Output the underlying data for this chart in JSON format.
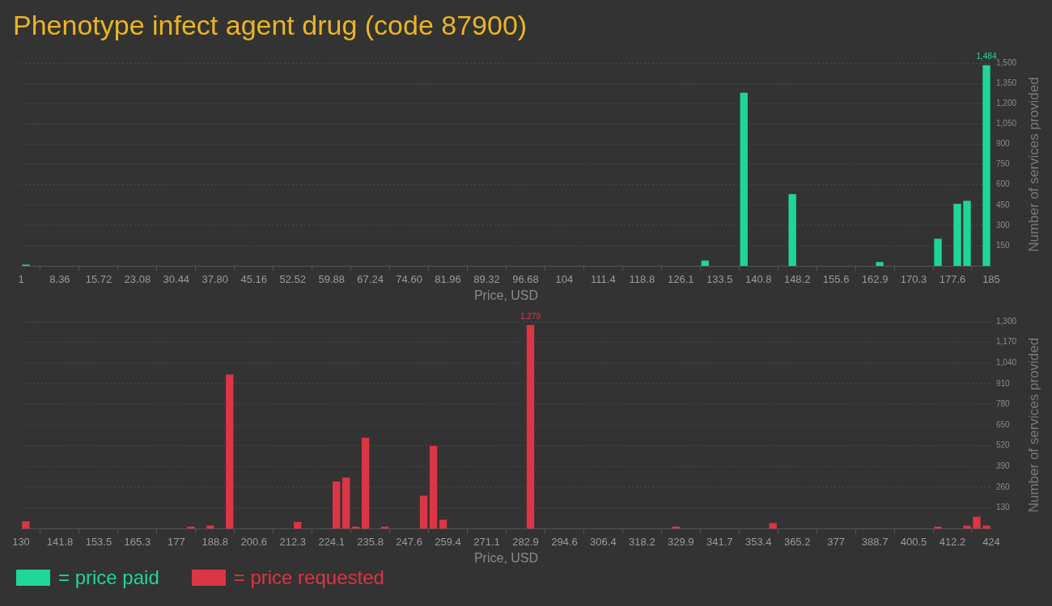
{
  "chart_data": [
    {
      "type": "histogram",
      "title": "Phenotype infect agent drug (code 87900)",
      "xlabel": "Price, USD",
      "ylabel": "Number of services provided",
      "bins": [
        1,
        2.84,
        4.68,
        6.52,
        8.36,
        10.2,
        12.04,
        13.88,
        15.72,
        17.56,
        19.4,
        21.24,
        23.08,
        24.92,
        26.76,
        28.6,
        30.44,
        32.28,
        34.12,
        35.96,
        37.8,
        39.64,
        41.48,
        43.32,
        45.16,
        47,
        48.84,
        50.68,
        52.52,
        54.36,
        56.2,
        58.04,
        59.88,
        61.72,
        63.56,
        65.4,
        67.24,
        69.08,
        70.92,
        72.76,
        74.6,
        76.44,
        78.28,
        80.12,
        81.96,
        83.8,
        85.64,
        87.48,
        89.32,
        91.16,
        93,
        94.84,
        96.68,
        98.52,
        100.36,
        102.2,
        104.04,
        105.88,
        107.72,
        109.56,
        111.4,
        113.24,
        115.08,
        116.92,
        118.76,
        120.6,
        122.44,
        124.28,
        126.12,
        127.96,
        129.8,
        131.64,
        133.48,
        135.32,
        137.16,
        139,
        140.84,
        142.68,
        144.52,
        146.36,
        148.2,
        150.04,
        151.88,
        153.72,
        155.56,
        157.4,
        159.24,
        161.08,
        162.92,
        164.76,
        166.6,
        168.44,
        170.28,
        172.12,
        173.96,
        175.8,
        177.64,
        179.48,
        181.32,
        183.16,
        185
      ],
      "series": [
        {
          "name": "= price paid",
          "color": "#1fd69a",
          "values": [
            10,
            0,
            0,
            0,
            0,
            0,
            0,
            0,
            0,
            0,
            0,
            0,
            0,
            0,
            0,
            0,
            0,
            0,
            0,
            0,
            0,
            0,
            0,
            0,
            0,
            0,
            0,
            0,
            0,
            0,
            0,
            0,
            0,
            0,
            0,
            0,
            0,
            0,
            0,
            0,
            0,
            0,
            0,
            0,
            0,
            0,
            0,
            0,
            0,
            0,
            0,
            0,
            0,
            0,
            0,
            0,
            0,
            0,
            0,
            0,
            0,
            0,
            0,
            0,
            0,
            0,
            0,
            0,
            0,
            0,
            40,
            0,
            0,
            0,
            1280,
            0,
            0,
            0,
            0,
            531,
            0,
            0,
            0,
            0,
            0,
            0,
            0,
            0,
            30,
            0,
            0,
            0,
            0,
            0,
            201,
            0,
            459,
            482,
            0,
            1484
          ]
        }
      ],
      "annotations": [
        {
          "text": "1,484",
          "x": 184.08,
          "y": 1484
        }
      ],
      "xlim": [
        1,
        185
      ],
      "xticks": [
        1,
        {
          "value": 8.36,
          "label": "8.36"
        },
        {
          "value": 15.72,
          "label": "15.72"
        },
        {
          "value": 23.08,
          "label": "23.08"
        },
        {
          "value": 30.44,
          "label": "30.44"
        },
        {
          "value": 37.8,
          "label": "37.80"
        },
        {
          "value": 45.16,
          "label": "45.16"
        },
        {
          "value": 52.52,
          "label": "52.52"
        },
        {
          "value": 59.88,
          "label": "59.88"
        },
        {
          "value": 67.24,
          "label": "67.24"
        },
        {
          "value": 74.6,
          "label": "74.60"
        },
        {
          "value": 81.96,
          "label": "81.96"
        },
        {
          "value": 89.32,
          "label": "89.32"
        },
        {
          "value": 96.68,
          "label": "96.68"
        },
        {
          "value": 104.04,
          "label": "104"
        },
        {
          "value": 111.4,
          "label": "111.4"
        },
        {
          "value": 118.76,
          "label": "118.8"
        },
        {
          "value": 126.12,
          "label": "126.1"
        },
        {
          "value": 133.48,
          "label": "133.5"
        },
        {
          "value": 140.84,
          "label": "140.8"
        },
        {
          "value": 148.2,
          "label": "148.2"
        },
        {
          "value": 155.56,
          "label": "155.6"
        },
        {
          "value": 162.92,
          "label": "162.9"
        },
        {
          "value": 170.28,
          "label": "170.3"
        },
        {
          "value": 177.64,
          "label": "177.6"
        },
        185
      ],
      "ylim": [
        0,
        1500
      ],
      "yticks": [
        150,
        300,
        450,
        600,
        750,
        900,
        {
          "value": 1050,
          "label": "1,050"
        },
        {
          "value": 1200,
          "label": "1,200"
        },
        {
          "value": 1350,
          "label": "1,350"
        },
        {
          "value": 1500,
          "label": "1,500"
        }
      ],
      "grid": "y",
      "legend": "bottom"
    },
    {
      "type": "histogram",
      "xlabel": "Price, USD",
      "ylabel": "Number of services provided",
      "bins": [
        130,
        132.94,
        135.88,
        138.82,
        141.76,
        144.7,
        147.64,
        150.58,
        153.52,
        156.46,
        159.4,
        162.34,
        165.28,
        168.22,
        171.16,
        174.1,
        177.04,
        179.98,
        182.92,
        185.86,
        188.8,
        191.74,
        194.68,
        197.62,
        200.56,
        203.5,
        206.44,
        209.38,
        212.32,
        215.26,
        218.2,
        221.14,
        224.08,
        227.02,
        229.96,
        232.9,
        235.84,
        238.78,
        241.72,
        244.66,
        247.6,
        250.54,
        253.48,
        256.42,
        259.36,
        262.3,
        265.24,
        268.18,
        271.12,
        274.06,
        277,
        279.94,
        282.88,
        285.82,
        288.76,
        291.7,
        294.64,
        297.58,
        300.52,
        303.46,
        306.4,
        309.34,
        312.28,
        315.22,
        318.16,
        321.1,
        324.04,
        326.98,
        329.92,
        332.86,
        335.8,
        338.74,
        341.68,
        344.62,
        347.56,
        350.5,
        353.44,
        356.38,
        359.32,
        362.26,
        365.2,
        368.14,
        371.08,
        374.02,
        376.96,
        379.9,
        382.84,
        385.78,
        388.72,
        391.66,
        394.6,
        397.54,
        400.48,
        403.42,
        406.36,
        409.3,
        412.24,
        415.18,
        418.12,
        421.06,
        424
      ],
      "series": [
        {
          "name": "= price requested",
          "color": "#dc3545",
          "values": [
            45,
            0,
            0,
            0,
            0,
            0,
            0,
            0,
            0,
            0,
            0,
            0,
            0,
            0,
            0,
            0,
            0,
            13,
            0,
            19,
            0,
            968,
            0,
            0,
            0,
            0,
            0,
            0,
            41,
            0,
            0,
            0,
            295,
            321,
            13,
            570,
            0,
            13,
            0,
            0,
            0,
            207,
            519,
            56,
            0,
            0,
            0,
            0,
            0,
            0,
            0,
            0,
            1279,
            0,
            0,
            0,
            0,
            0,
            0,
            0,
            0,
            0,
            0,
            0,
            0,
            0,
            0,
            13,
            0,
            0,
            0,
            0,
            0,
            0,
            0,
            0,
            0,
            34,
            0,
            0,
            0,
            0,
            0,
            0,
            0,
            0,
            0,
            0,
            0,
            0,
            0,
            0,
            0,
            0,
            13,
            0,
            0,
            19,
            75,
            19
          ]
        }
      ],
      "annotations": [
        {
          "text": "1,279",
          "x": 284.35,
          "y": 1279
        }
      ],
      "xlim": [
        130,
        424
      ],
      "xticks": [
        130,
        {
          "value": 141.76,
          "label": "141.8"
        },
        {
          "value": 153.52,
          "label": "153.5"
        },
        {
          "value": 165.28,
          "label": "165.3"
        },
        {
          "value": 177.04,
          "label": "177"
        },
        188.8,
        {
          "value": 200.56,
          "label": "200.6"
        },
        {
          "value": 212.32,
          "label": "212.3"
        },
        {
          "value": 224.08,
          "label": "224.1"
        },
        {
          "value": 235.84,
          "label": "235.8"
        },
        247.6,
        {
          "value": 259.36,
          "label": "259.4"
        },
        {
          "value": 271.12,
          "label": "271.1"
        },
        {
          "value": 282.88,
          "label": "282.9"
        },
        {
          "value": 294.64,
          "label": "294.6"
        },
        306.4,
        {
          "value": 318.16,
          "label": "318.2"
        },
        {
          "value": 329.92,
          "label": "329.9"
        },
        {
          "value": 341.68,
          "label": "341.7"
        },
        {
          "value": 353.44,
          "label": "353.4"
        },
        365.2,
        {
          "value": 376.96,
          "label": "377"
        },
        {
          "value": 388.72,
          "label": "388.7"
        },
        {
          "value": 400.48,
          "label": "400.5"
        },
        {
          "value": 412.24,
          "label": "412.2"
        },
        424
      ],
      "ylim": [
        0,
        1300
      ],
      "yticks": [
        130,
        260,
        390,
        520,
        650,
        780,
        910,
        {
          "value": 1040,
          "label": "1,040"
        },
        {
          "value": 1170,
          "label": "1,170"
        },
        {
          "value": 1300,
          "label": "1,300"
        }
      ],
      "grid": "y",
      "legend": "bottom"
    }
  ]
}
